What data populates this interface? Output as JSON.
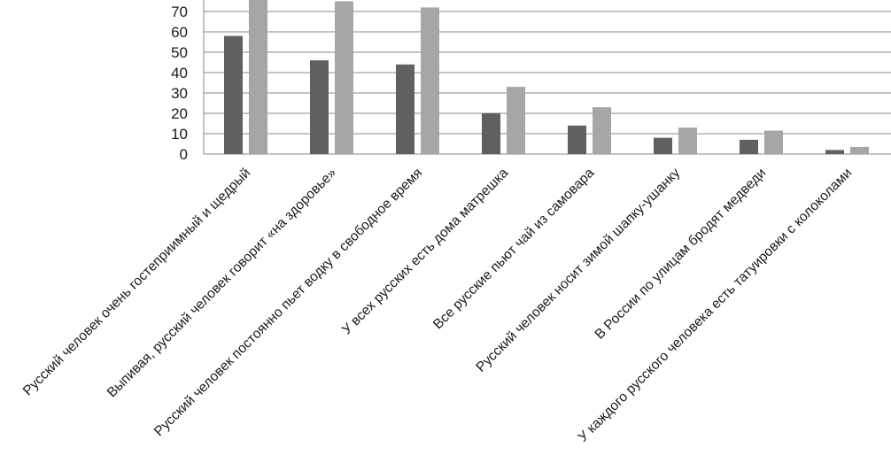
{
  "chart_data": {
    "type": "bar",
    "categories": [
      "Русский человек очень гостеприимный и щедрый",
      "Выпивая, русский человек говорит «на здоровье»",
      "Русский человек постоянно пьет водку в свободное время",
      "У всех русских есть дома матрешка",
      "Все русские  пьют чай из самовара",
      "Русский человек носит зимой шапку-ушанку",
      "В России по улицам бродят медведи",
      "У каждого русского человека есть татуировки с колоколами"
    ],
    "series": [
      {
        "values": [
          58,
          46,
          44,
          20,
          14,
          8,
          7,
          2
        ],
        "color": "#606060"
      },
      {
        "values": [
          77,
          75,
          72,
          33,
          23,
          13,
          11.5,
          3.5
        ],
        "color": "#a6a6a6"
      }
    ],
    "yticks": [
      0,
      10,
      20,
      30,
      40,
      50,
      60,
      70
    ],
    "ylim": [
      0,
      80
    ],
    "grid": true,
    "legend": "none"
  }
}
